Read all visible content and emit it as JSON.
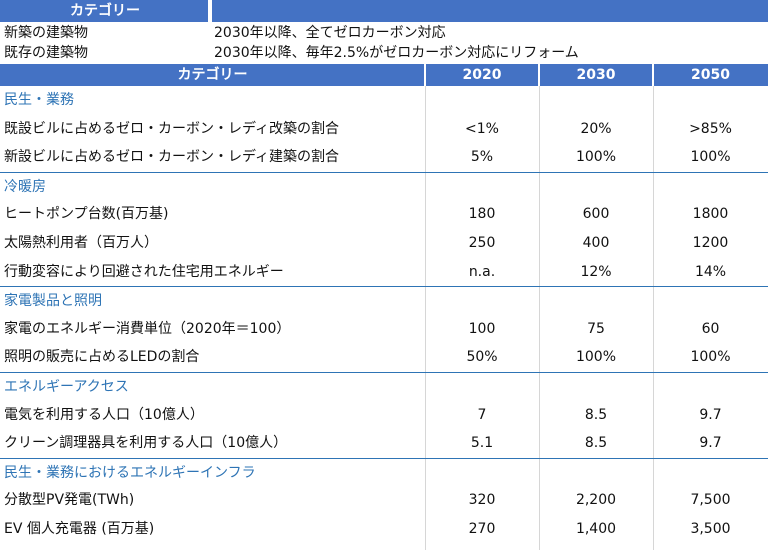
{
  "top": {
    "header": "カテゴリー",
    "rows": [
      {
        "key": "新築の建築物",
        "value": "2030年以降、全てゼロカーボン対応"
      },
      {
        "key": "既存の建築物",
        "value": "2030年以降、毎年2.5%がゼロカーボン対応にリフォーム"
      }
    ]
  },
  "main": {
    "headers": [
      "カテゴリー",
      "2020",
      "2030",
      "2050"
    ],
    "rows": [
      {
        "type": "section",
        "label": "民生・業務"
      },
      {
        "type": "data",
        "label": "既設ビルに占めるゼロ・カーボン・レディ改築の割合",
        "v2020": "<1%",
        "v2030": "20%",
        "v2050": ">85%"
      },
      {
        "type": "data",
        "label": "新設ビルに占めるゼロ・カーボン・レディ建築の割合",
        "v2020": "5%",
        "v2030": "100%",
        "v2050": "100%"
      },
      {
        "type": "section",
        "label": "冷暖房"
      },
      {
        "type": "data",
        "label": "ヒートポンプ台数(百万基)",
        "v2020": "180",
        "v2030": "600",
        "v2050": "1800"
      },
      {
        "type": "data",
        "label": "太陽熱利用者（百万人）",
        "v2020": "250",
        "v2030": "400",
        "v2050": "1200"
      },
      {
        "type": "data",
        "label": "行動変容により回避された住宅用エネルギー",
        "v2020": "n.a.",
        "v2030": "12%",
        "v2050": "14%"
      },
      {
        "type": "section",
        "label": "家電製品と照明"
      },
      {
        "type": "data",
        "label": "家電のエネルギー消費単位（2020年＝100）",
        "v2020": "100",
        "v2030": "75",
        "v2050": "60"
      },
      {
        "type": "data",
        "label": "照明の販売に占めるLEDの割合",
        "v2020": "50%",
        "v2030": "100%",
        "v2050": "100%"
      },
      {
        "type": "section",
        "label": "エネルギーアクセス"
      },
      {
        "type": "data",
        "label": "電気を利用する人口（10億人）",
        "v2020": "7",
        "v2030": "8.5",
        "v2050": "9.7"
      },
      {
        "type": "data",
        "label": "クリーン調理器具を利用する人口（10億人）",
        "v2020": "5.1",
        "v2030": "8.5",
        "v2050": "9.7"
      },
      {
        "type": "section",
        "label": "民生・業務におけるエネルギーインフラ"
      },
      {
        "type": "data",
        "label": "分散型PV発電(TWh)",
        "v2020": "320",
        "v2030": "2,200",
        "v2050": "7,500"
      },
      {
        "type": "data",
        "label": "EV 個人充電器 (百万基)",
        "v2020": "270",
        "v2030": "1,400",
        "v2050": "3,500"
      }
    ]
  }
}
